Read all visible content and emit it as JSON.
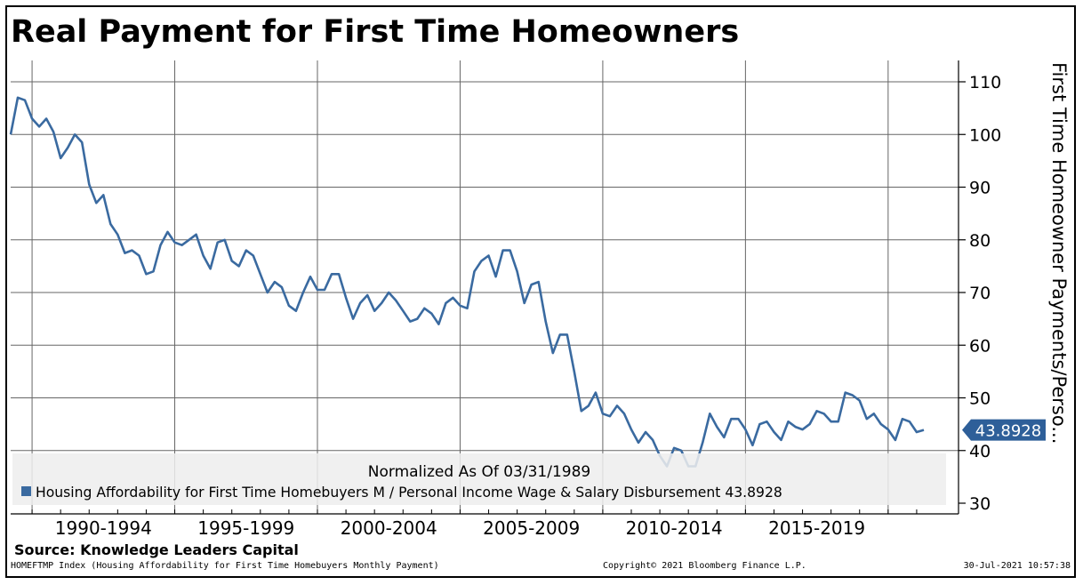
{
  "chart_data": {
    "type": "line",
    "title": "Real Payment for First Time Homeowners",
    "ylabel": "First Time Homeowner Payments/Perso...",
    "ylim": [
      30,
      110
    ],
    "yticks": [
      30,
      40,
      50,
      60,
      70,
      80,
      90,
      100,
      110
    ],
    "xlim": [
      1989.25,
      2021.75
    ],
    "period_labels": [
      "1990-1994",
      "1995-1999",
      "2000-2004",
      "2005-2009",
      "2010-2014",
      "2015-2019"
    ],
    "last_value_label": "43.8928",
    "legend": {
      "note": "Normalized As Of 03/31/1989",
      "entry": "Housing Affordability for First Time Homebuyers M / Personal Income Wage & Salary Disbursement 43.8928"
    },
    "grid": true,
    "line_color": "#3a6aa0",
    "series": [
      {
        "x": [
          1989.25,
          1989.5,
          1989.75,
          1990,
          1990.25,
          1990.5,
          1990.75,
          1991,
          1991.25,
          1991.5,
          1991.75,
          1992,
          1992.25,
          1992.5,
          1992.75,
          1993,
          1993.25,
          1993.5,
          1993.75,
          1994,
          1994.25,
          1994.5,
          1994.75,
          1995,
          1995.25,
          1995.5,
          1995.75,
          1996,
          1996.25,
          1996.5,
          1996.75,
          1997,
          1997.25,
          1997.5,
          1997.75,
          1998,
          1998.25,
          1998.5,
          1998.75,
          1999,
          1999.25,
          1999.5,
          1999.75,
          2000,
          2000.25,
          2000.5,
          2000.75,
          2001,
          2001.25,
          2001.5,
          2001.75,
          2002,
          2002.25,
          2002.5,
          2002.75,
          2003,
          2003.25,
          2003.5,
          2003.75,
          2004,
          2004.25,
          2004.5,
          2004.75,
          2005,
          2005.25,
          2005.5,
          2005.75,
          2006,
          2006.25,
          2006.5,
          2006.75,
          2007,
          2007.25,
          2007.5,
          2007.75,
          2008,
          2008.25,
          2008.5,
          2008.75,
          2009,
          2009.25,
          2009.5,
          2009.75,
          2010,
          2010.25,
          2010.5,
          2010.75,
          2011,
          2011.25,
          2011.5,
          2011.75,
          2012,
          2012.25,
          2012.5,
          2012.75,
          2013,
          2013.25,
          2013.5,
          2013.75,
          2014,
          2014.25,
          2014.5,
          2014.75,
          2015,
          2015.25,
          2015.5,
          2015.75,
          2016,
          2016.25,
          2016.5,
          2016.75,
          2017,
          2017.25,
          2017.5,
          2017.75,
          2018,
          2018.25,
          2018.5,
          2018.75,
          2019,
          2019.25,
          2019.5,
          2019.75,
          2020,
          2020.25,
          2020.5,
          2020.75,
          2021,
          2021.25
        ],
        "values": [
          100,
          107,
          106.5,
          103,
          101.5,
          103,
          100.5,
          95.5,
          97.5,
          100,
          98.5,
          90.5,
          87,
          88.5,
          83,
          81,
          77.5,
          78,
          77,
          73.5,
          74,
          79,
          81.5,
          79.5,
          79,
          80,
          81,
          77,
          74.5,
          79.5,
          80,
          76,
          75,
          78,
          77,
          73.5,
          70,
          72,
          71,
          67.5,
          66.5,
          70,
          73,
          70.5,
          70.5,
          73.5,
          73.5,
          69,
          65,
          68,
          69.5,
          66.5,
          68,
          70,
          68.5,
          66.5,
          64.5,
          65,
          67,
          66,
          64,
          68,
          69,
          67.5,
          67,
          74,
          76,
          77,
          73,
          78,
          78,
          74,
          68,
          71.5,
          72,
          64.5,
          58.5,
          62,
          62,
          55,
          47.5,
          48.5,
          51,
          47,
          46.5,
          48.5,
          47,
          44,
          41.5,
          43.5,
          42,
          39,
          37,
          40.5,
          40,
          37,
          37,
          41.5,
          47,
          44.5,
          42.5,
          46,
          46,
          44,
          41,
          45,
          45.5,
          43.5,
          42,
          45.5,
          44.5,
          44,
          45,
          47.5,
          47,
          45.5,
          45.5,
          51,
          50.5,
          49.5,
          46,
          47,
          45,
          44,
          42,
          46,
          45.5,
          43.5,
          43.9
        ]
      }
    ]
  },
  "source": "Source: Knowledge Leaders Capital",
  "footer": {
    "left": "HOMEFTMP Index (Housing Affordability for First Time Homebuyers Monthly Payment)",
    "middle": "Copyright© 2021 Bloomberg Finance L.P.",
    "right": "30-Jul-2021 10:57:38"
  }
}
